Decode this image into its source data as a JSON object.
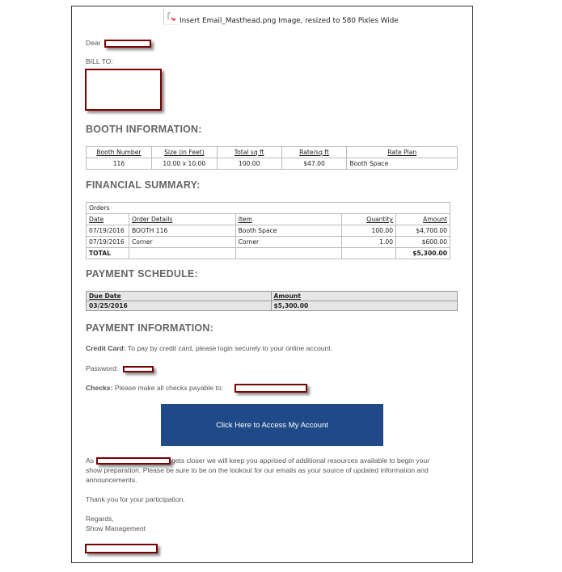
{
  "masthead": {
    "placeholder_text": "Insert Email_Masthead.png Image, resized to 580 Pixles Wide",
    "icon": "broken-image-icon"
  },
  "greeting": {
    "label": "Dear"
  },
  "bill_to": {
    "label": "BILL TO:"
  },
  "booth": {
    "heading": "BOOTH INFORMATION:",
    "headers": [
      "Booth Number",
      "Size (in Feet)",
      "Total sq ft",
      "Rate/sq ft",
      "Rate Plan"
    ],
    "row": [
      "116",
      "10.00 x 10.00",
      "100.00",
      "$47.00",
      "Booth Space"
    ]
  },
  "financial": {
    "heading": "FINANCIAL SUMMARY:",
    "caption": "Orders",
    "headers": [
      "Date",
      "Order Details",
      "Item",
      "Quantity",
      "Amount"
    ],
    "rows": [
      [
        "07/19/2016",
        "BOOTH 116",
        "Booth Space",
        "100.00",
        "$4,700.00"
      ],
      [
        "07/19/2016",
        "Corner",
        "Corner",
        "1.00",
        "$600.00"
      ]
    ],
    "total_label": "TOTAL",
    "total_amount": "$5,300.00"
  },
  "schedule": {
    "heading": "PAYMENT SCHEDULE:",
    "headers": [
      "Due Date",
      "Amount"
    ],
    "row": [
      "03/25/2016",
      "$5,300.00"
    ]
  },
  "payment": {
    "heading": "PAYMENT INFORMATION:",
    "credit_label": "Credit Card:",
    "credit_text": " To pay by credit card, please login securely to your online account.",
    "password_label": "Password:",
    "checks_label": "Checks:",
    "checks_text": " Please make all checks payable to:",
    "button_label": "Click Here to Access My Account",
    "button_color": "#1f4a87"
  },
  "closing": {
    "as": "As",
    "para_line1": "gets closer we will keep you apprised of additional resources available to begin your",
    "para_line2": "show preparation. Please be sure to be on the lookout for our emails as your source of updated information and",
    "para_line3": "announcements.",
    "thanks": "Thank you for your participation.",
    "regards": "Regards,",
    "signature": "Show Management"
  },
  "redaction_color": "#7a0000"
}
